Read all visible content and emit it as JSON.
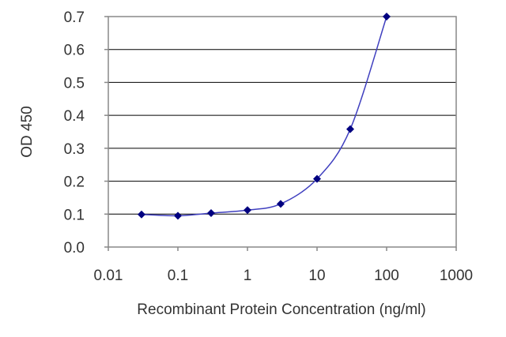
{
  "chart_data": {
    "type": "line",
    "x_scale": "log",
    "xlabel": "Recombinant Protein Concentration (ng/ml)",
    "ylabel": "OD 450",
    "xlim": [
      0.01,
      1000
    ],
    "ylim": [
      0,
      0.7
    ],
    "x_ticks": [
      "0.01",
      "0.1",
      "1",
      "10",
      "100",
      "1000"
    ],
    "y_ticks": [
      "0.0",
      "0.1",
      "0.2",
      "0.3",
      "0.4",
      "0.5",
      "0.6",
      "0.7"
    ],
    "grid": "horizontal",
    "series": [
      {
        "x": [
          0.03,
          0.1,
          0.3,
          1,
          3,
          10,
          30,
          100
        ],
        "y": [
          0.099,
          0.095,
          0.103,
          0.112,
          0.131,
          0.207,
          0.358,
          0.7
        ]
      }
    ],
    "colors": {
      "line": "#3f3fbf",
      "marker": "#000080",
      "grid": "#000000",
      "axis": "#888888"
    }
  }
}
